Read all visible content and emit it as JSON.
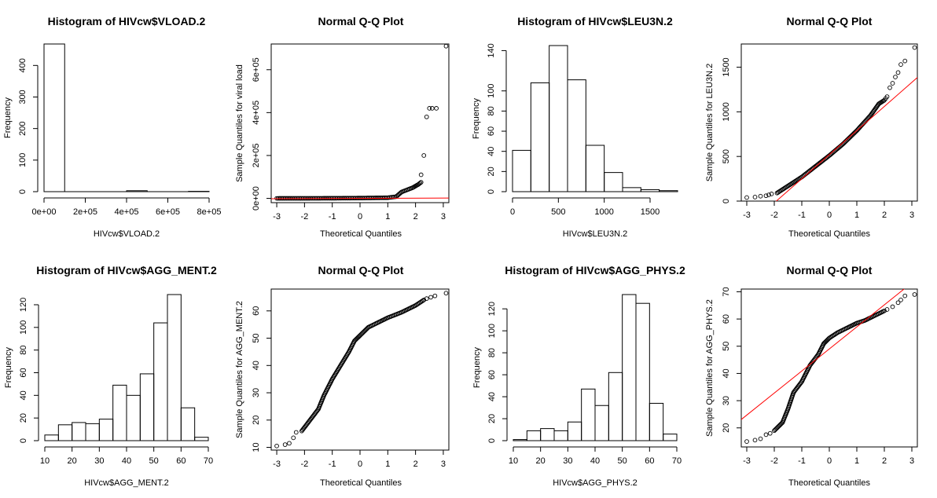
{
  "chart_data": [
    {
      "type": "bar",
      "subtype": "histogram",
      "title": "Histogram of HIVcw$VLOAD.2",
      "xlabel": "HIVcw$VLOAD.2",
      "ylabel": "Frequency",
      "breaks": [
        0,
        100000,
        200000,
        300000,
        400000,
        500000,
        600000,
        700000,
        800000
      ],
      "values": [
        468,
        0,
        0,
        0,
        3,
        0,
        0,
        1
      ],
      "xlim": [
        0,
        800000
      ],
      "ylim": [
        0,
        468
      ],
      "xticks": [
        0,
        200000,
        400000,
        600000,
        800000
      ],
      "xtick_labels": [
        "0e+00",
        "2e+05",
        "4e+05",
        "6e+05",
        "8e+05"
      ],
      "yticks": [
        0,
        100,
        200,
        300,
        400
      ],
      "ytick_labels": [
        "0",
        "100",
        "200",
        "300",
        "400"
      ]
    },
    {
      "type": "scatter",
      "subtype": "qqplot",
      "title": "Normal Q-Q Plot",
      "xlabel": "Theoretical Quantiles",
      "ylabel": "Sample Quantiles for viral load",
      "xlim": [
        -3.2,
        3.2
      ],
      "ylim": [
        -20000,
        720000
      ],
      "xticks": [
        -3,
        -2,
        -1,
        0,
        1,
        2,
        3
      ],
      "xtick_labels": [
        "-3",
        "-2",
        "-1",
        "0",
        "1",
        "2",
        "3"
      ],
      "yticks": [
        0,
        200000,
        400000,
        600000
      ],
      "ytick_labels": [
        "0e+00",
        "2e+05",
        "4e+05",
        "6e+05"
      ],
      "qq_line": {
        "intercept": 0,
        "slope": 500,
        "color": "#ff0000"
      },
      "curve": [
        [
          -3.0,
          0
        ],
        [
          -2.0,
          200
        ],
        [
          -1.0,
          600
        ],
        [
          0.0,
          1500
        ],
        [
          1.0,
          3000
        ],
        [
          1.3,
          8000
        ],
        [
          1.5,
          30000
        ],
        [
          1.7,
          40000
        ],
        [
          1.9,
          50000
        ],
        [
          2.1,
          65000
        ],
        [
          2.2,
          75000
        ]
      ],
      "points": [
        [
          2.2,
          110000
        ],
        [
          2.3,
          200000
        ],
        [
          2.4,
          380000
        ],
        [
          2.5,
          420000
        ],
        [
          2.6,
          420000
        ],
        [
          2.75,
          420000
        ],
        [
          3.1,
          710000
        ]
      ]
    },
    {
      "type": "bar",
      "subtype": "histogram",
      "title": "Histogram of HIVcw$LEU3N.2",
      "xlabel": "HIVcw$LEU3N.2",
      "ylabel": "Frequency",
      "breaks": [
        0,
        200,
        400,
        600,
        800,
        1000,
        1200,
        1400,
        1600,
        1800
      ],
      "values": [
        41,
        108,
        145,
        111,
        46,
        19,
        4,
        2,
        1
      ],
      "xlim": [
        0,
        1800
      ],
      "ylim": [
        0,
        145
      ],
      "xticks": [
        0,
        500,
        1000,
        1500
      ],
      "xtick_labels": [
        "0",
        "500",
        "1000",
        "1500"
      ],
      "yticks": [
        0,
        20,
        40,
        60,
        80,
        100,
        140
      ],
      "ytick_labels": [
        "0",
        "20",
        "40",
        "60",
        "80",
        "100",
        "140"
      ]
    },
    {
      "type": "scatter",
      "subtype": "qqplot",
      "title": "Normal Q-Q Plot",
      "xlabel": "Theoretical Quantiles",
      "ylabel": "Sample Quantiles for LEU3N.2",
      "xlim": [
        -3.2,
        3.2
      ],
      "ylim": [
        0,
        1760
      ],
      "xticks": [
        -3,
        -2,
        -1,
        0,
        1,
        2,
        3
      ],
      "xtick_labels": [
        "-3",
        "-2",
        "-1",
        "0",
        "1",
        "2",
        "3"
      ],
      "yticks": [
        0,
        500,
        1000,
        1500
      ],
      "ytick_labels": [
        "0",
        "500",
        "1000",
        "1500"
      ],
      "qq_line": {
        "intercept": 520,
        "slope": 270,
        "color": "#ff0000"
      },
      "curve": [
        [
          -1.9,
          90
        ],
        [
          -1.5,
          170
        ],
        [
          -1.0,
          270
        ],
        [
          -0.5,
          390
        ],
        [
          0.0,
          510
        ],
        [
          0.5,
          640
        ],
        [
          1.0,
          790
        ],
        [
          1.5,
          960
        ],
        [
          1.8,
          1090
        ],
        [
          2.0,
          1130
        ]
      ],
      "points": [
        [
          -3.0,
          40
        ],
        [
          -2.7,
          45
        ],
        [
          -2.5,
          55
        ],
        [
          -2.3,
          60
        ],
        [
          -2.2,
          70
        ],
        [
          -2.1,
          80
        ],
        [
          2.05,
          1150
        ],
        [
          2.1,
          1170
        ],
        [
          2.2,
          1270
        ],
        [
          2.3,
          1320
        ],
        [
          2.4,
          1390
        ],
        [
          2.5,
          1440
        ],
        [
          2.6,
          1530
        ],
        [
          2.75,
          1570
        ],
        [
          3.1,
          1720
        ]
      ]
    },
    {
      "type": "bar",
      "subtype": "histogram",
      "title": "Histogram of HIVcw$AGG_MENT.2",
      "xlabel": "HIVcw$AGG_MENT.2",
      "ylabel": "Frequency",
      "breaks": [
        10,
        15,
        20,
        25,
        30,
        35,
        40,
        45,
        50,
        55,
        60,
        65,
        70
      ],
      "values": [
        5,
        14,
        16,
        15,
        19,
        49,
        40,
        59,
        104,
        129,
        29,
        3
      ],
      "xlim": [
        10,
        70
      ],
      "ylim": [
        0,
        129
      ],
      "xticks": [
        10,
        20,
        30,
        40,
        50,
        60,
        70
      ],
      "xtick_labels": [
        "10",
        "20",
        "30",
        "40",
        "50",
        "60",
        "70"
      ],
      "yticks": [
        0,
        20,
        40,
        60,
        80,
        100,
        120
      ],
      "ytick_labels": [
        "0",
        "20",
        "40",
        "60",
        "80",
        "100",
        "120"
      ]
    },
    {
      "type": "scatter",
      "subtype": "qqplot",
      "title": "Normal Q-Q Plot",
      "xlabel": "Theoretical Quantiles",
      "ylabel": "Sample Quantiles for AGG_MENT.2",
      "xlim": [
        -3.2,
        3.2
      ],
      "ylim": [
        9,
        68
      ],
      "xticks": [
        -3,
        -2,
        -1,
        0,
        1,
        2,
        3
      ],
      "xtick_labels": [
        "-3",
        "-2",
        "-1",
        "0",
        "1",
        "2",
        "3"
      ],
      "yticks": [
        10,
        20,
        30,
        40,
        50,
        60
      ],
      "ytick_labels": [
        "10",
        "20",
        "30",
        "40",
        "50",
        "60"
      ],
      "curve": [
        [
          -2.1,
          16
        ],
        [
          -1.8,
          20
        ],
        [
          -1.5,
          24
        ],
        [
          -1.3,
          29
        ],
        [
          -1.0,
          35
        ],
        [
          -0.7,
          40
        ],
        [
          -0.4,
          45
        ],
        [
          -0.2,
          49
        ],
        [
          0.0,
          51
        ],
        [
          0.3,
          54
        ],
        [
          0.7,
          56
        ],
        [
          1.0,
          57.5
        ],
        [
          1.5,
          59.5
        ],
        [
          2.0,
          62
        ],
        [
          2.3,
          64
        ]
      ],
      "points": [
        [
          -3.0,
          10.5
        ],
        [
          -2.7,
          11
        ],
        [
          -2.55,
          11.5
        ],
        [
          -2.4,
          13.5
        ],
        [
          -2.3,
          15.5
        ],
        [
          2.4,
          64.5
        ],
        [
          2.55,
          65
        ],
        [
          2.7,
          65.5
        ],
        [
          3.1,
          66.5
        ]
      ]
    },
    {
      "type": "bar",
      "subtype": "histogram",
      "title": "Histogram of HIVcw$AGG_PHYS.2",
      "xlabel": "HIVcw$AGG_PHYS.2",
      "ylabel": "Frequency",
      "breaks": [
        10,
        15,
        20,
        25,
        30,
        35,
        40,
        45,
        50,
        55,
        60,
        65,
        70
      ],
      "values": [
        1,
        9,
        11,
        9,
        17,
        47,
        32,
        62,
        133,
        125,
        34,
        6
      ],
      "xlim": [
        10,
        70
      ],
      "ylim": [
        0,
        133
      ],
      "xticks": [
        10,
        20,
        30,
        40,
        50,
        60,
        70
      ],
      "xtick_labels": [
        "10",
        "20",
        "30",
        "40",
        "50",
        "60",
        "70"
      ],
      "yticks": [
        0,
        20,
        40,
        60,
        80,
        100,
        120
      ],
      "ytick_labels": [
        "0",
        "20",
        "40",
        "60",
        "80",
        "100",
        "120"
      ]
    },
    {
      "type": "scatter",
      "subtype": "qqplot",
      "title": "Normal Q-Q Plot",
      "xlabel": "Theoretical Quantiles",
      "ylabel": "Sample Quantiles for AGG_PHYS.2",
      "xlim": [
        -3.2,
        3.2
      ],
      "ylim": [
        13,
        71
      ],
      "xticks": [
        -3,
        -2,
        -1,
        0,
        1,
        2,
        3
      ],
      "xtick_labels": [
        "-3",
        "-2",
        "-1",
        "0",
        "1",
        "2",
        "3"
      ],
      "yticks": [
        20,
        30,
        40,
        50,
        60,
        70
      ],
      "ytick_labels": [
        "20",
        "30",
        "40",
        "50",
        "60",
        "70"
      ],
      "qq_line": {
        "intercept": 49,
        "slope": 8.1,
        "color": "#ff0000"
      },
      "curve": [
        [
          -2.0,
          19
        ],
        [
          -1.7,
          22
        ],
        [
          -1.5,
          27
        ],
        [
          -1.3,
          33
        ],
        [
          -1.0,
          37
        ],
        [
          -0.7,
          43
        ],
        [
          -0.4,
          47
        ],
        [
          -0.2,
          51
        ],
        [
          0.0,
          53
        ],
        [
          0.3,
          55
        ],
        [
          0.7,
          57
        ],
        [
          1.0,
          58.5
        ],
        [
          1.3,
          59.5
        ],
        [
          1.6,
          61
        ],
        [
          2.0,
          63
        ]
      ],
      "points": [
        [
          -3.0,
          15
        ],
        [
          -2.7,
          15.5
        ],
        [
          -2.5,
          16
        ],
        [
          -2.3,
          17.5
        ],
        [
          -2.15,
          18
        ],
        [
          2.1,
          63.5
        ],
        [
          2.3,
          64.5
        ],
        [
          2.5,
          66
        ],
        [
          2.6,
          67
        ],
        [
          2.75,
          68.5
        ],
        [
          3.1,
          69
        ]
      ]
    }
  ]
}
